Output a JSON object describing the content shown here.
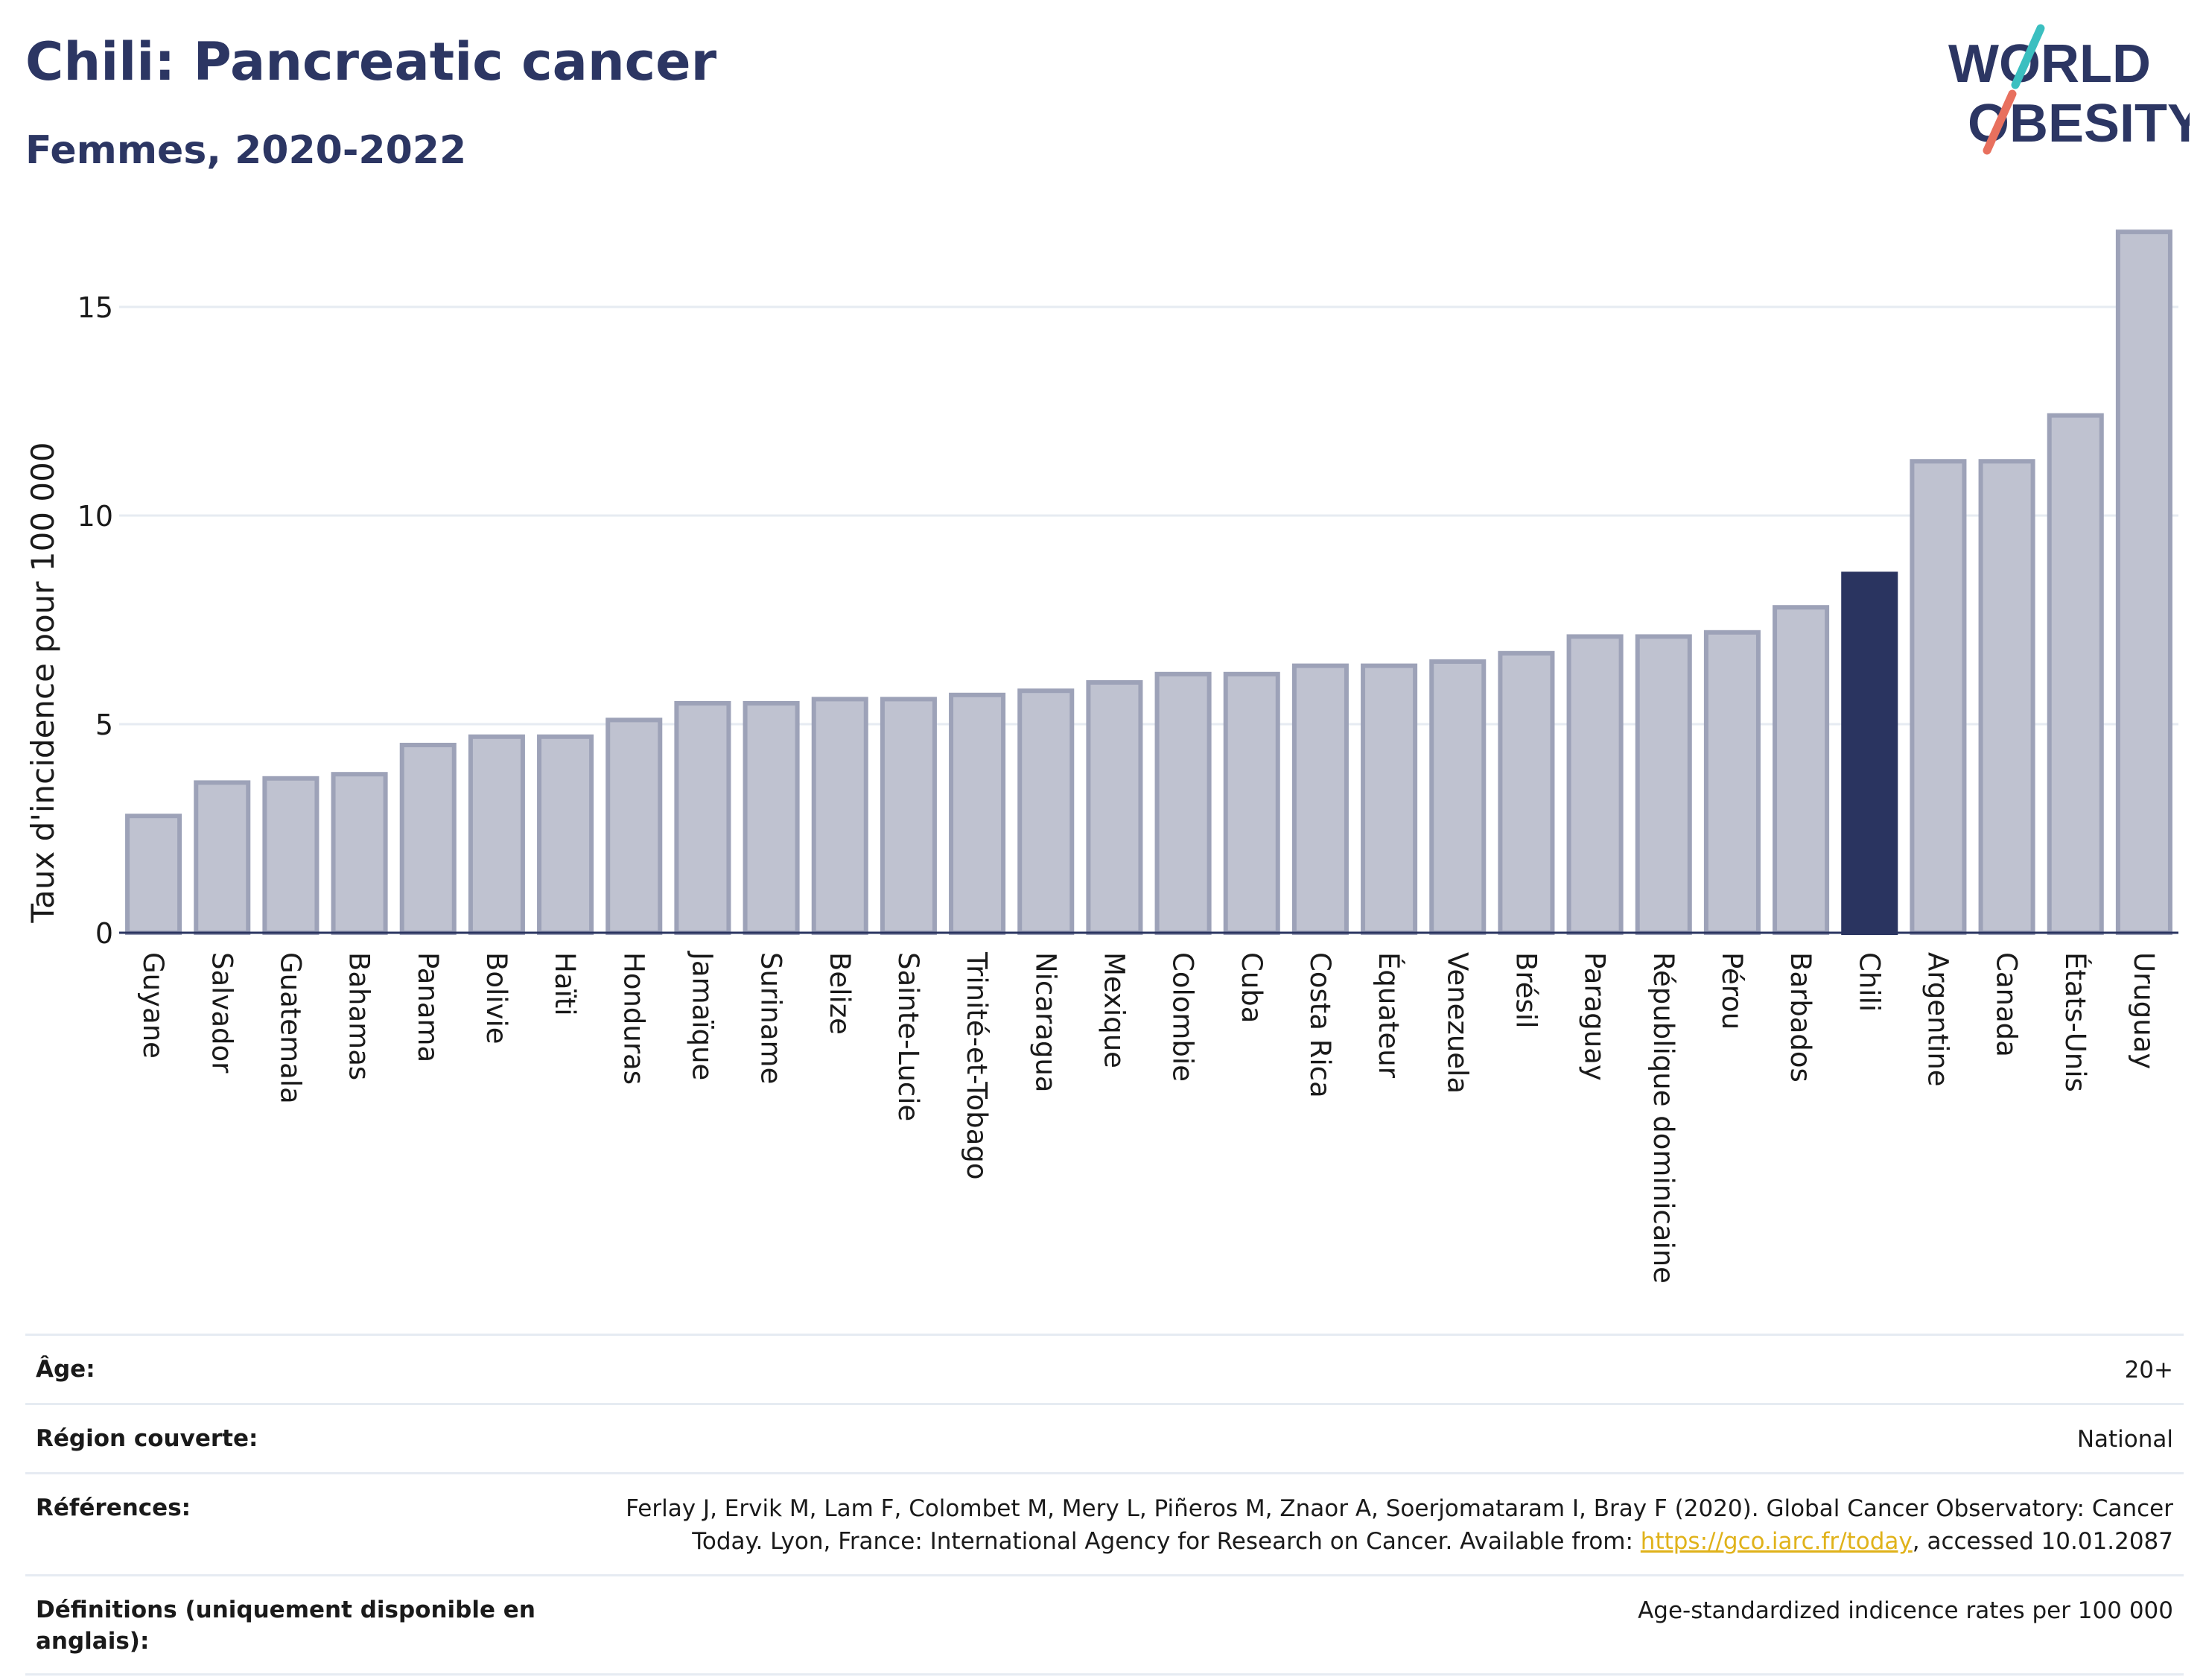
{
  "header": {
    "title": "Chili: Pancreatic cancer",
    "subtitle": "Femmes, 2020-2022"
  },
  "logo": {
    "line1": "WORLD",
    "line2": "OBESITY",
    "accent_teal": "#3bbfc0",
    "accent_coral": "#e8705e"
  },
  "colors": {
    "bar": "#bfc2d0",
    "bar_border": "#9da2b8",
    "highlight": "#2a3460",
    "axis_text": "#1a1a1a",
    "grid": "#e6ebf2"
  },
  "chart_data": {
    "type": "bar",
    "title": "Chili: Pancreatic cancer",
    "subtitle": "Femmes, 2020-2022",
    "ylabel": "Taux d'incidence pour 100 000",
    "xlabel": "",
    "ylim": [
      0,
      17
    ],
    "yticks": [
      0,
      5,
      10,
      15
    ],
    "grid": true,
    "highlight": "Chili",
    "categories": [
      "Guyane",
      "Salvador",
      "Guatemala",
      "Bahamas",
      "Panama",
      "Bolivie",
      "Haïti",
      "Honduras",
      "Jamaïque",
      "Suriname",
      "Belize",
      "Sainte-Lucie",
      "Trinité-et-Tobago",
      "Nicaragua",
      "Mexique",
      "Colombie",
      "Cuba",
      "Costa Rica",
      "Équateur",
      "Venezuela",
      "Brésil",
      "Paraguay",
      "République dominicaine",
      "Pérou",
      "Barbados",
      "Chili",
      "Argentine",
      "Canada",
      "États-Unis",
      "Uruguay"
    ],
    "values": [
      2.8,
      3.6,
      3.7,
      3.8,
      4.5,
      4.7,
      4.7,
      5.1,
      5.5,
      5.5,
      5.6,
      5.6,
      5.7,
      5.8,
      6.0,
      6.2,
      6.2,
      6.4,
      6.4,
      6.5,
      6.7,
      7.1,
      7.1,
      7.2,
      7.8,
      8.6,
      11.3,
      11.3,
      12.4,
      16.8
    ]
  },
  "meta": [
    {
      "label": "Âge:",
      "value": "20+"
    },
    {
      "label": "Région couverte:",
      "value": "National"
    },
    {
      "label": "Références:",
      "value_before": "Ferlay J, Ervik M, Lam F, Colombet M, Mery L, Piñeros M, Znaor A, Soerjomataram I, Bray F (2020). Global Cancer Observatory: Cancer Today. Lyon, France: International Agency for Research on Cancer. Available from: ",
      "link": "https://gco.iarc.fr/today",
      "value_after": ", accessed 10.01.2087"
    },
    {
      "label": "Définitions (uniquement disponible en anglais):",
      "value": "Age-standardized indicence rates per 100 000"
    }
  ]
}
